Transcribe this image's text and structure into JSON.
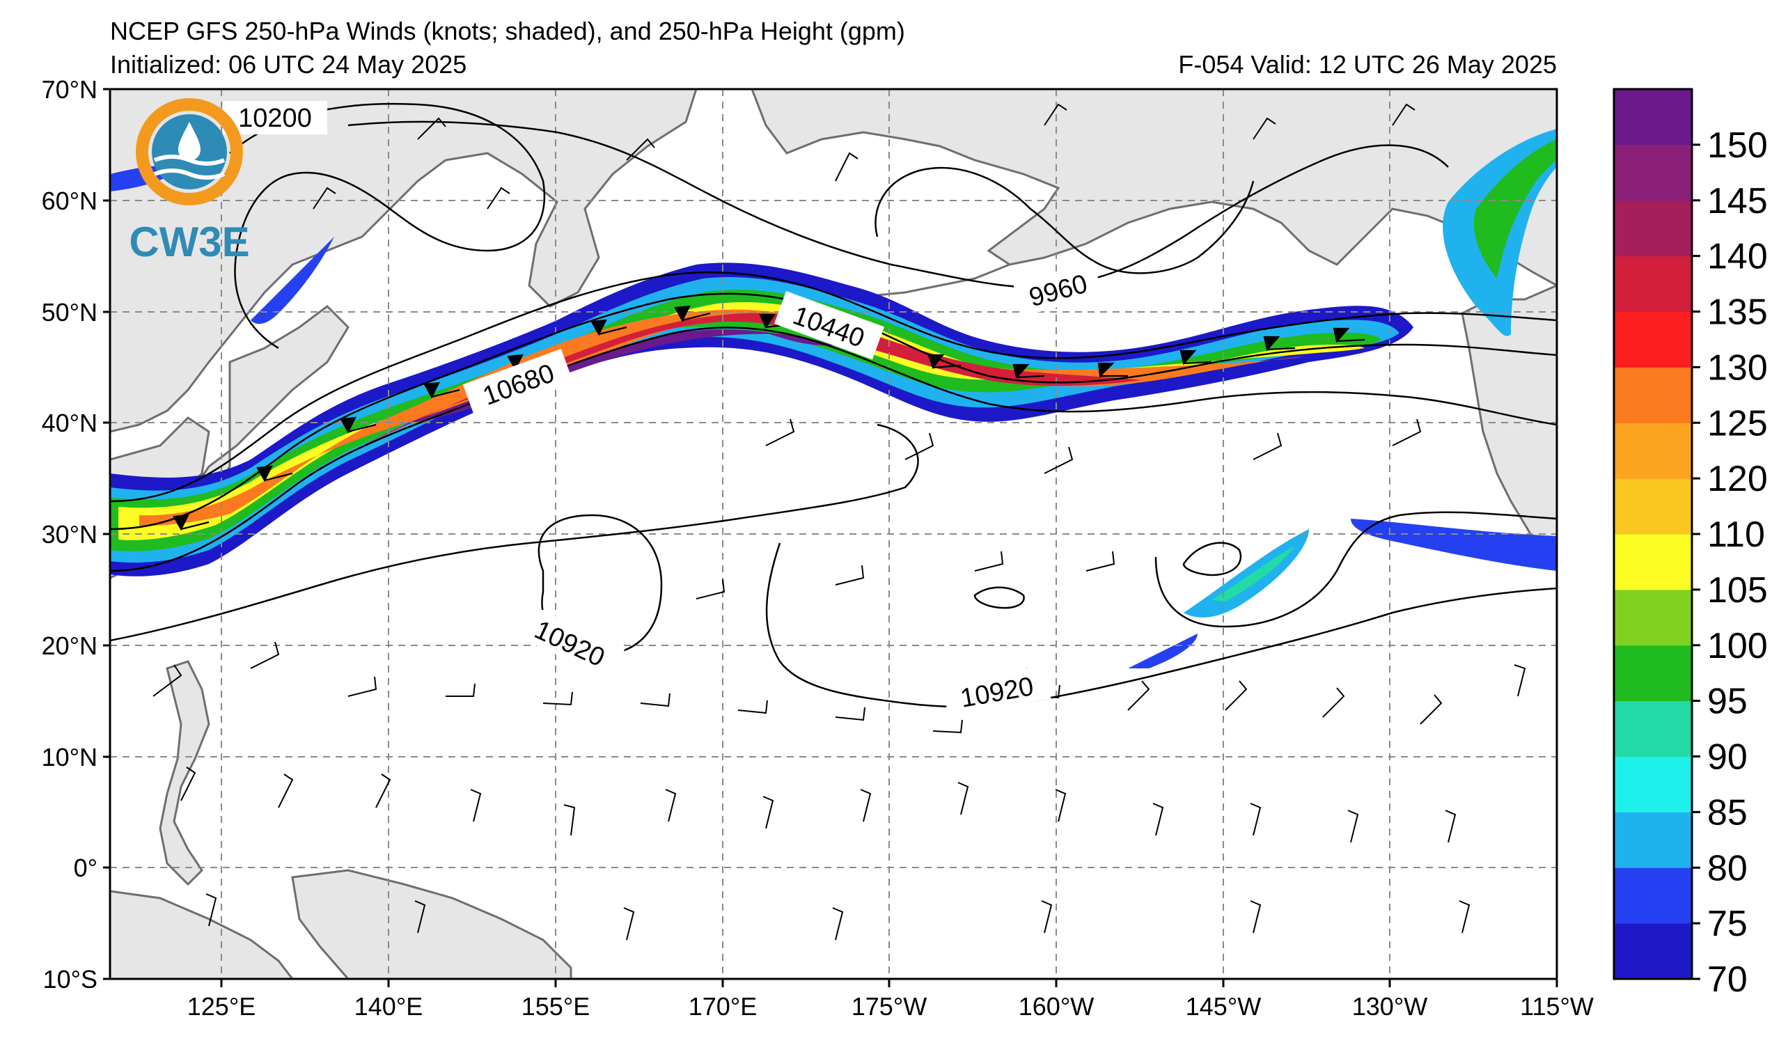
{
  "header": {
    "title": "NCEP GFS 250-hPa Winds (knots; shaded), and 250-hPa Height (gpm)",
    "initialized": "Initialized: 06 UTC 24 May 2025",
    "valid": "F-054  Valid: 12 UTC 26 May 2025"
  },
  "logo": {
    "text": "CW3E",
    "ring_color": "#f39a1e",
    "text_color": "#2e8bb6"
  },
  "map": {
    "lat_labels": [
      "70°N",
      "60°N",
      "50°N",
      "40°N",
      "30°N",
      "20°N",
      "10°N",
      "0°",
      "10°S"
    ],
    "lon_labels": [
      "125°E",
      "140°E",
      "155°E",
      "170°E",
      "175°W",
      "160°W",
      "145°W",
      "130°W",
      "115°W"
    ],
    "ocean_color": "#ffffff",
    "land_color": "#e6e6e6",
    "coast_color": "#6e6e6e",
    "grid": "dashed"
  },
  "contour_labels": [
    "10200",
    "10440",
    "10680",
    "9960",
    "10920",
    "10920"
  ],
  "colorbar": {
    "units": "knots",
    "tick_labels": [
      "70",
      "75",
      "80",
      "85",
      "90",
      "95",
      "100",
      "105",
      "110",
      "120",
      "125",
      "130",
      "135",
      "140",
      "145",
      "150"
    ],
    "colors": [
      "#1d18c8",
      "#2440f0",
      "#1fb2ef",
      "#1ef0ec",
      "#22dba6",
      "#1fbb1f",
      "#7fd320",
      "#fbfc23",
      "#fbc61f",
      "#fba41f",
      "#fb7a20",
      "#fb1e1e",
      "#d31f3c",
      "#a51f5a",
      "#8a1f7a",
      "#6a1a8c"
    ]
  }
}
